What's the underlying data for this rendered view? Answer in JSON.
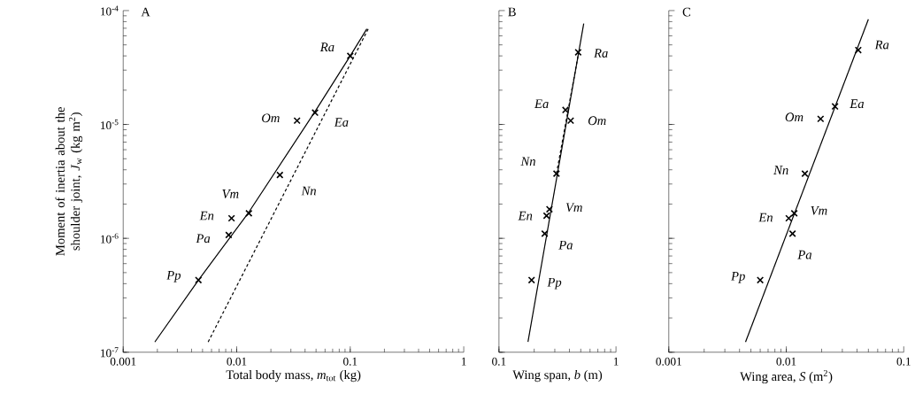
{
  "chart_data": [
    {
      "type": "scatter",
      "title": "A",
      "xlabel": "Total body mass, *m*$_{tot}$ (kg)",
      "ylabel": "Moment of inertia about the shoulder joint, *J*$_{w}$ (kg m$^{2}$)",
      "log": "xy",
      "xlim": [
        0.001,
        1
      ],
      "ylim": [
        1e-07,
        0.0001
      ],
      "xticks": [
        0.001,
        0.01,
        0.1,
        1
      ],
      "yticks": [
        {
          "value": 1e-07,
          "label": "10$^{-7}$"
        },
        {
          "value": 1e-06,
          "label": "10$^{-6}$"
        },
        {
          "value": 1e-05,
          "label": "10$^{-5}$"
        },
        {
          "value": 0.0001,
          "label": "10$^{-4}$"
        }
      ],
      "series": [
        {
          "color": "#000000",
          "marker": "cross",
          "x": [
            0.1,
            0.034,
            0.049,
            0.024,
            0.0128,
            0.009,
            0.0085,
            0.0046
          ],
          "values": [
            4e-05,
            1.08e-05,
            1.27e-05,
            3.6e-06,
            1.66e-06,
            1.5e-06,
            1.07e-06,
            4.3e-07
          ]
        },
        {
          "type": "line",
          "color": "#000000",
          "marker": "none",
          "line_style": "solid",
          "x": [
            0.0019,
            0.0046,
            0.0128,
            0.049,
            0.1,
            0.14
          ],
          "values": [
            1.23e-07,
            4.3e-07,
            1.7e-06,
            1.3e-05,
            4e-05,
            6.9e-05
          ]
        },
        {
          "type": "line",
          "color": "#000000",
          "marker": "none",
          "line_style": "dashed",
          "x": [
            0.0056,
            0.145
          ],
          "values": [
            1.23e-07,
            7e-05
          ]
        }
      ],
      "annotations": [
        "Ra",
        "Om",
        "Ea",
        "Nn",
        "Vm",
        "En",
        "Pa",
        "Pp"
      ]
    },
    {
      "type": "scatter",
      "title": "B",
      "xlabel": "Wing span, *b* (m)",
      "log": "xy",
      "xlim": [
        0.1,
        1
      ],
      "ylim": [
        1e-07,
        0.0001
      ],
      "xticks": [
        0.1,
        1
      ],
      "yticks": [
        {
          "value": 1e-07,
          "label": null
        },
        {
          "value": 1e-06,
          "label": null
        },
        {
          "value": 1e-05,
          "label": null
        },
        {
          "value": 0.0001,
          "label": null
        }
      ],
      "tick_labels": "x",
      "series": [
        {
          "color": "#000000",
          "marker": "cross",
          "x": [
            0.475,
            0.37,
            0.41,
            0.31,
            0.27,
            0.255,
            0.246,
            0.19
          ],
          "values": [
            4.3e-05,
            1.34e-05,
            1.08e-05,
            3.7e-06,
            1.8e-06,
            1.58e-06,
            1.1e-06,
            4.3e-07
          ]
        },
        {
          "type": "line",
          "color": "#000000",
          "marker": "none",
          "line_style": "solid",
          "x": [
            0.177,
            0.53
          ],
          "values": [
            1.23e-07,
            7.7e-05
          ]
        },
        {
          "type": "line",
          "color": "#000000",
          "marker": "none",
          "line_style": "dashed",
          "x": [
            0.31,
            0.48
          ],
          "values": [
            3.7e-06,
            4.3e-05
          ]
        }
      ],
      "annotations": [
        "Ra",
        "Ea",
        "Om",
        "Nn",
        "Vm",
        "En",
        "Pa",
        "Pp"
      ]
    },
    {
      "type": "scatter",
      "title": "C",
      "xlabel": "Wing area, *S* (m$^{2}$)",
      "log": "xy",
      "xlim": [
        0.001,
        0.1
      ],
      "ylim": [
        1e-07,
        0.0001
      ],
      "xticks": [
        0.001,
        0.01,
        0.1
      ],
      "yticks": [
        {
          "value": 1e-07,
          "label": null
        },
        {
          "value": 1e-06,
          "label": null
        },
        {
          "value": 1e-05,
          "label": null
        },
        {
          "value": 0.0001,
          "label": null
        }
      ],
      "tick_labels": "x",
      "series": [
        {
          "color": "#000000",
          "marker": "cross",
          "x": [
            0.041,
            0.026,
            0.0196,
            0.0144,
            0.0117,
            0.0105,
            0.0113,
            0.006
          ],
          "values": [
            4.5e-05,
            1.44e-05,
            1.12e-05,
            3.7e-06,
            1.66e-06,
            1.5e-06,
            1.1e-06,
            4.3e-07
          ]
        },
        {
          "type": "line",
          "color": "#000000",
          "marker": "none",
          "line_style": "solid",
          "x": [
            0.0045,
            0.05
          ],
          "values": [
            1.23e-07,
            8.4e-05
          ]
        }
      ],
      "annotations": [
        "Ra",
        "Ea",
        "Om",
        "Nn",
        "Vm",
        "En",
        "Pa",
        "Pp"
      ]
    }
  ]
}
